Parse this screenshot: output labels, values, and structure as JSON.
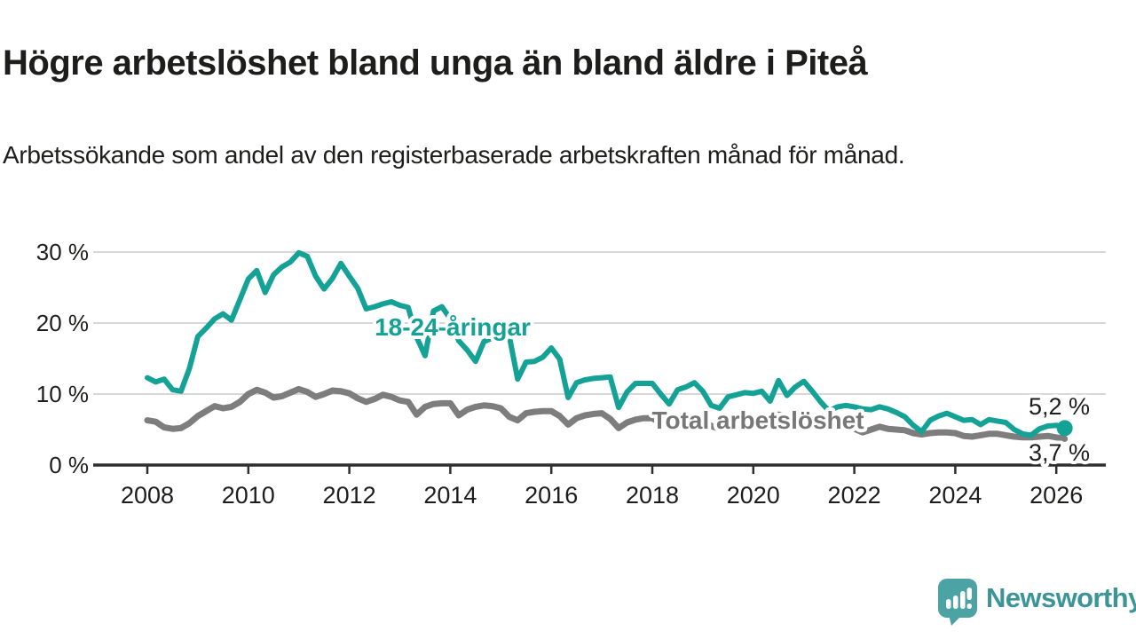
{
  "title": "Högre arbetslöshet bland unga än bland äldre i Piteå",
  "subtitle": "Arbetssökande som andel av den registerbaserade arbetskraften månad för månad.",
  "branding": {
    "name": "Newsworthy",
    "logo_icon": "speech-bubble-bar-chart-icon",
    "logo_bubble_color": "#4BA3A3",
    "logo_text_color": "#3B9598"
  },
  "colors": {
    "young_line": "#14A296",
    "total_line": "#7D7D7D",
    "gridline": "#D8D8D8",
    "axis": "#2F2F2F",
    "text": "#1D1D1B"
  },
  "chart_data": {
    "type": "line",
    "title": "Högre arbetslöshet bland unga än bland äldre i Piteå",
    "subtitle": "Arbetssökande som andel av den registerbaserade arbetskraften månad för månad.",
    "unit": "%",
    "grid": true,
    "x_axis": {
      "start_year": 2008.0,
      "step_months": 2,
      "end_year": 2026.17,
      "tick_labels": [
        "2008",
        "2010",
        "2012",
        "2014",
        "2016",
        "2018",
        "2020",
        "2022",
        "2024",
        "2026"
      ],
      "tick_values": [
        2008,
        2010,
        2012,
        2014,
        2016,
        2018,
        2020,
        2022,
        2024,
        2026
      ]
    },
    "y_axis": {
      "tick_labels": [
        "0 %",
        "10 %",
        "20 %",
        "30 %"
      ],
      "tick_values": [
        0,
        10,
        20,
        30
      ],
      "range": [
        0,
        31
      ]
    },
    "series": [
      {
        "id": "young",
        "name": "18-24-åringar",
        "color": "#14A296",
        "end_label": "5,2 %",
        "last_value": 5.2,
        "values": [
          12.3,
          11.7,
          12.1,
          10.6,
          10.4,
          13.6,
          18.1,
          19.3,
          20.6,
          21.3,
          20.4,
          23.3,
          26.2,
          27.4,
          24.3,
          26.8,
          27.9,
          28.6,
          29.9,
          29.4,
          26.6,
          24.8,
          26.3,
          28.4,
          26.6,
          24.9,
          22.0,
          22.3,
          22.7,
          23.0,
          22.5,
          22.2,
          18.0,
          15.4,
          21.7,
          22.3,
          20.6,
          17.5,
          16.2,
          14.6,
          17.4,
          17.9,
          18.0,
          18.2,
          12.1,
          14.5,
          14.6,
          15.2,
          16.5,
          14.9,
          9.5,
          11.6,
          12.0,
          12.2,
          12.3,
          12.4,
          8.1,
          10.3,
          11.5,
          11.5,
          11.5,
          10.0,
          8.6,
          10.6,
          11.0,
          11.6,
          10.4,
          8.4,
          8.0,
          9.6,
          9.9,
          10.2,
          10.1,
          10.4,
          9.0,
          11.9,
          9.8,
          11.0,
          11.8,
          10.4,
          8.9,
          7.6,
          8.2,
          8.4,
          8.2,
          7.9,
          7.8,
          8.2,
          7.9,
          7.4,
          6.8,
          5.6,
          4.7,
          6.3,
          6.9,
          7.3,
          6.8,
          6.3,
          6.4,
          5.7,
          6.4,
          6.2,
          6.0,
          5.0,
          4.4,
          4.2,
          5.1,
          5.5,
          5.6,
          5.2
        ]
      },
      {
        "id": "total",
        "name": "Total arbetslöshet",
        "color": "#7D7D7D",
        "end_label": "3,7 %",
        "last_value": 3.7,
        "values": [
          6.3,
          6.1,
          5.3,
          5.1,
          5.2,
          5.9,
          6.9,
          7.6,
          8.3,
          8.0,
          8.2,
          8.9,
          10.0,
          10.6,
          10.2,
          9.5,
          9.7,
          10.2,
          10.7,
          10.3,
          9.6,
          10.0,
          10.5,
          10.4,
          10.1,
          9.4,
          8.9,
          9.3,
          9.9,
          9.6,
          9.1,
          8.9,
          7.1,
          8.2,
          8.6,
          8.7,
          8.7,
          7.0,
          7.8,
          8.2,
          8.4,
          8.3,
          8.0,
          6.8,
          6.3,
          7.3,
          7.5,
          7.6,
          7.6,
          6.9,
          5.7,
          6.6,
          7.0,
          7.2,
          7.3,
          6.5,
          5.2,
          6.0,
          6.4,
          6.6,
          6.6,
          5.9,
          5.3,
          5.9,
          6.2,
          6.4,
          6.4,
          5.5,
          5.1,
          5.7,
          6.0,
          6.2,
          6.3,
          6.5,
          6.9,
          7.1,
          6.9,
          6.9,
          6.8,
          6.4,
          5.9,
          5.6,
          5.5,
          5.3,
          5.1,
          4.6,
          5.0,
          5.4,
          5.1,
          5.0,
          4.9,
          4.5,
          4.3,
          4.5,
          4.6,
          4.6,
          4.5,
          4.1,
          4.0,
          4.2,
          4.4,
          4.4,
          4.2,
          4.0,
          3.9,
          3.9,
          4.0,
          4.1,
          3.9,
          3.7
        ]
      }
    ],
    "legend_position": "inline-labels"
  }
}
